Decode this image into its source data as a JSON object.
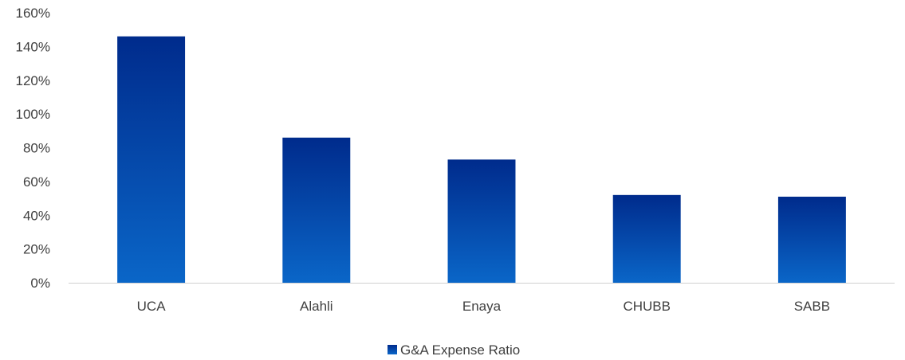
{
  "chart_data": {
    "type": "bar",
    "categories": [
      "UCA",
      "Alahli",
      "Enaya",
      "CHUBB",
      "SABB"
    ],
    "series": [
      {
        "name": "G&A Expense Ratio",
        "values": [
          146,
          86,
          73,
          52,
          51
        ]
      }
    ],
    "ylim": [
      0,
      160
    ],
    "yticks": [
      0,
      20,
      40,
      60,
      80,
      100,
      120,
      140,
      160
    ],
    "ytick_format": "percent",
    "grid": false,
    "legend_position": "bottom-center",
    "colors": {
      "bar_top": "#002b8c",
      "bar_bottom": "#0a66c8",
      "axis": "#d0d0d0",
      "text": "#404040"
    }
  }
}
